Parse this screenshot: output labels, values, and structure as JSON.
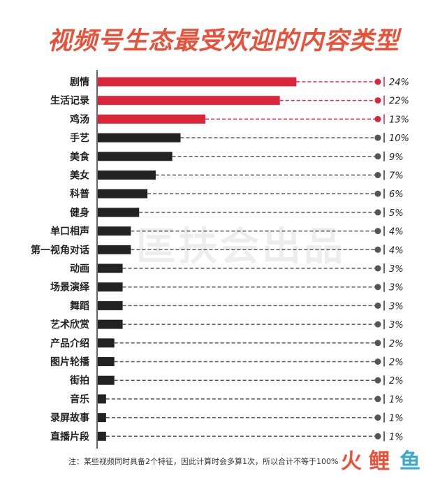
{
  "colors": {
    "accent": "#d9263a",
    "bar_dark": "#222222",
    "title": "#e8523a",
    "dot_dark": "#555555",
    "connector_dark": "#555555"
  },
  "chart_data": {
    "type": "bar",
    "orientation": "horizontal",
    "title": "视频号生态最受欢迎的内容类型",
    "categories": [
      "剧情",
      "生活记录",
      "鸡汤",
      "手艺",
      "美食",
      "美女",
      "科普",
      "健身",
      "单口相声",
      "第一视角对话",
      "动画",
      "场景演绎",
      "舞蹈",
      "艺术欣赏",
      "产品介绍",
      "图片轮播",
      "街拍",
      "音乐",
      "录屏故事",
      "直播片段"
    ],
    "values": [
      24,
      22,
      13,
      10,
      9,
      7,
      6,
      5,
      4,
      4,
      3,
      3,
      3,
      3,
      2,
      2,
      2,
      1,
      1,
      1
    ],
    "value_labels": [
      "24%",
      "22%",
      "13%",
      "10%",
      "9%",
      "7%",
      "6%",
      "5%",
      "4%",
      "4%",
      "3%",
      "3%",
      "3%",
      "3%",
      "2%",
      "2%",
      "2%",
      "1%",
      "1%",
      "1%"
    ],
    "highlighted_count": 3,
    "grid": false
  },
  "watermark": "匡扶会出品",
  "footnote": "注：某些视频同时具备2个特征，因此计算时会多算1次，所以合计不等于100%",
  "logo": {
    "text_chars": [
      "火",
      "鲤",
      "鱼"
    ]
  }
}
